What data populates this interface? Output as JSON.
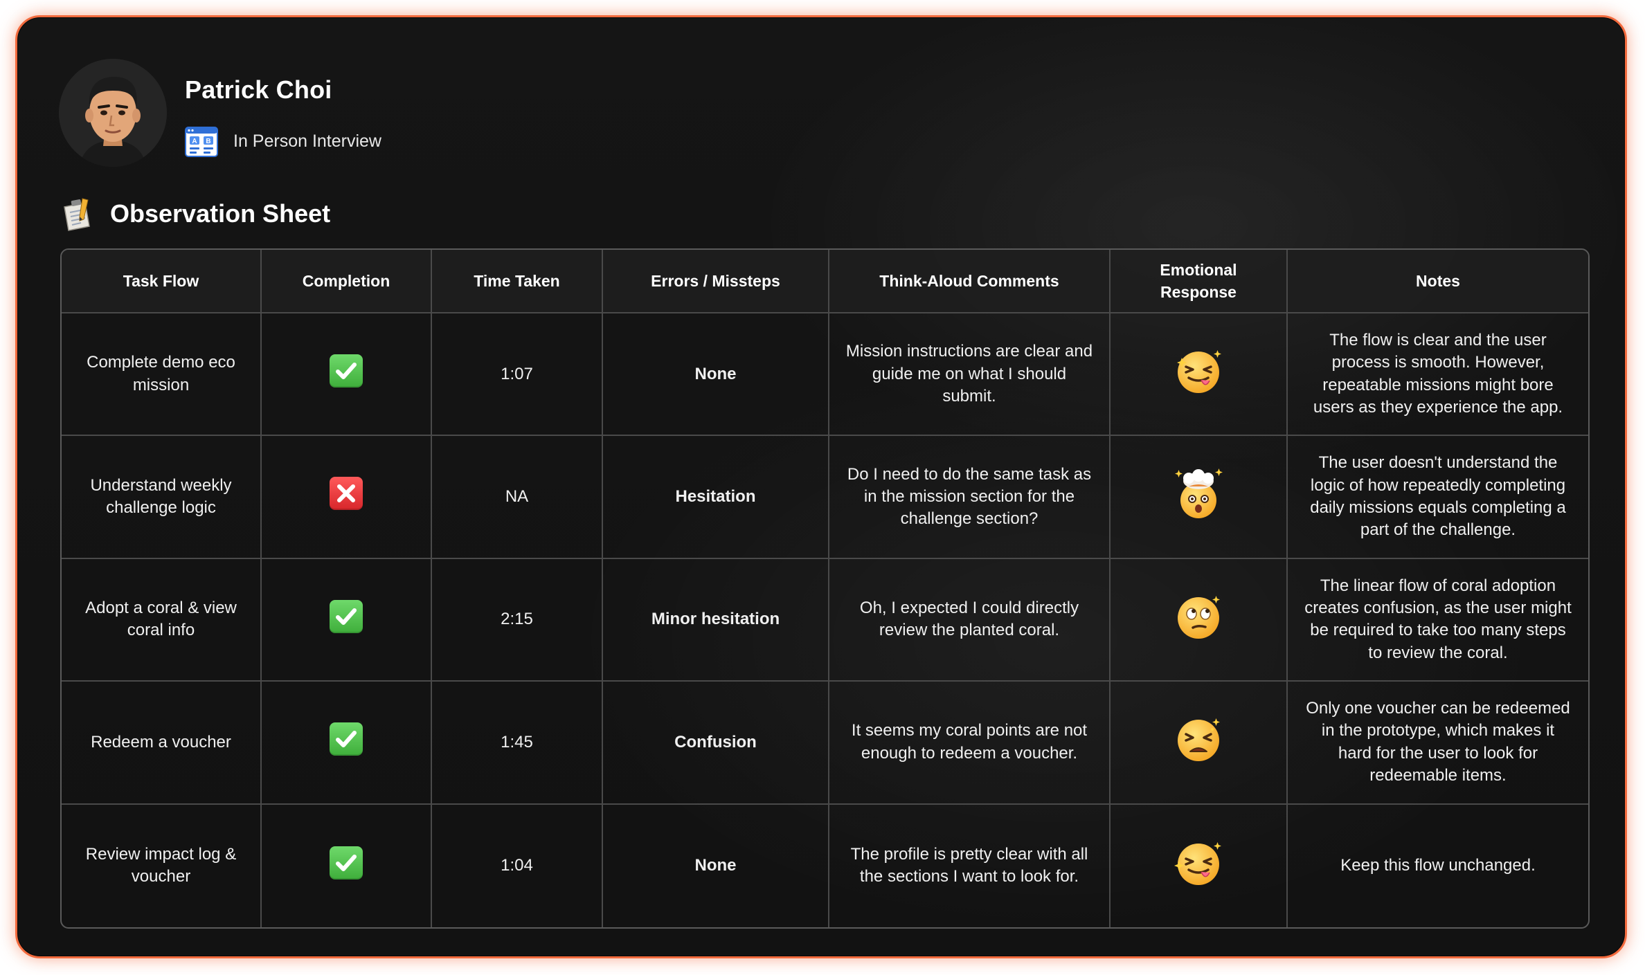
{
  "profile": {
    "name": "Patrick Choi",
    "interview_type": "In Person Interview"
  },
  "section": {
    "title": "Observation Sheet"
  },
  "table": {
    "headers": {
      "task_flow": "Task Flow",
      "completion": "Completion",
      "time_taken": "Time Taken",
      "errors": "Errors / Missteps",
      "think_aloud": "Think-Aloud Comments",
      "emotional_line1": "Emotional",
      "emotional_line2": "Response",
      "notes": "Notes"
    },
    "rows": [
      {
        "task": "Complete demo eco mission",
        "completion": "check",
        "time": "1:07",
        "errors": "None",
        "comment": "Mission instructions are clear and guide me on what I should submit.",
        "emotion": "squinting-tongue-face-icon",
        "notes": "The flow is clear and the user process is smooth. However, repeatable missions might bore users as they experience the app."
      },
      {
        "task": "Understand weekly challenge logic",
        "completion": "cross",
        "time": "NA",
        "errors": "Hesitation",
        "comment": "Do I need to do the same task as in the mission section for the challenge section?",
        "emotion": "exploding-head-icon",
        "notes": "The user doesn't understand the logic of how repeatedly completing daily missions equals completing a part of the challenge."
      },
      {
        "task": "Adopt a coral & view coral info",
        "completion": "check",
        "time": "2:15",
        "errors": "Minor hesitation",
        "comment": "Oh, I expected I could directly review the planted coral.",
        "emotion": "rolling-eyes-face-icon",
        "notes": "The linear flow of coral adoption creates confusion, as the user might be required to take too many steps to review the coral."
      },
      {
        "task": "Redeem a voucher",
        "completion": "check",
        "time": "1:45",
        "errors": "Confusion",
        "comment": "It seems my coral points are not enough to redeem a voucher.",
        "emotion": "tired-face-icon",
        "notes": "Only one voucher can be redeemed in the prototype, which makes it hard for the user to look for redeemable items."
      },
      {
        "task": "Review impact log & voucher",
        "completion": "check",
        "time": "1:04",
        "errors": "None",
        "comment": "The profile is pretty clear with all the sections I want to look for.",
        "emotion": "squinting-tongue-face-icon",
        "notes": "Keep this flow unchanged."
      }
    ]
  },
  "colors": {
    "accent_border": "#f26a3d",
    "background": "#141414",
    "check_green": "#4cc247",
    "cross_red": "#e5303a"
  }
}
